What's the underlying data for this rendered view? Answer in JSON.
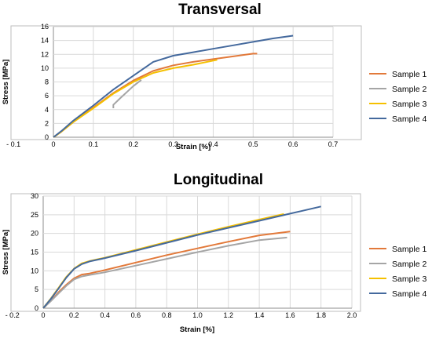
{
  "chart_data": [
    {
      "type": "line",
      "title": "Transversal",
      "xlabel": "Strain [%]",
      "ylabel": "Stress [MPa]",
      "xlim": [
        -0.1,
        0.7
      ],
      "ylim": [
        0,
        16
      ],
      "xticks": [
        "- 0.1",
        "0",
        "0.1",
        "0.2",
        "0.3",
        "0.4",
        "0.5",
        "0.6",
        "0.7"
      ],
      "yticks": [
        "0",
        "2",
        "4",
        "6",
        "8",
        "10",
        "12",
        "14",
        "16"
      ],
      "grid": true,
      "legend": "right",
      "series": [
        {
          "name": "Sample 1",
          "color": "#e2793a",
          "x": [
            0,
            0.02,
            0.05,
            0.1,
            0.15,
            0.2,
            0.25,
            0.3,
            0.35,
            0.4,
            0.45,
            0.5,
            0.51
          ],
          "y": [
            0,
            0.8,
            2.2,
            4.3,
            6.4,
            8.2,
            9.6,
            10.4,
            10.9,
            11.3,
            11.7,
            12.1,
            12.1
          ]
        },
        {
          "name": "Sample 2",
          "color": "#a5a5a5",
          "x": [
            0.15,
            0.15,
            0.17,
            0.2,
            0.22
          ],
          "y": [
            4.2,
            4.7,
            5.8,
            7.4,
            8.3
          ]
        },
        {
          "name": "Sample 3",
          "color": "#f5c000",
          "x": [
            0,
            0.02,
            0.05,
            0.1,
            0.15,
            0.2,
            0.25,
            0.3,
            0.35,
            0.41
          ],
          "y": [
            0,
            0.8,
            2.2,
            4.2,
            6.3,
            8.0,
            9.3,
            10.0,
            10.5,
            11.2
          ]
        },
        {
          "name": "Sample 4",
          "color": "#44699d",
          "x": [
            0,
            0.02,
            0.05,
            0.1,
            0.15,
            0.2,
            0.25,
            0.3,
            0.35,
            0.4,
            0.45,
            0.5,
            0.55,
            0.6
          ],
          "y": [
            0,
            0.9,
            2.4,
            4.6,
            6.9,
            8.9,
            10.9,
            11.8,
            12.3,
            12.8,
            13.3,
            13.8,
            14.3,
            14.7
          ]
        }
      ]
    },
    {
      "type": "line",
      "title": "Longitudinal",
      "xlabel": "Strain [%]",
      "ylabel": "Stress [MPa]",
      "xlim": [
        -0.2,
        2.0
      ],
      "ylim": [
        0,
        30
      ],
      "xticks": [
        "- 0.2",
        "0",
        "0.2",
        "0.4",
        "0.6",
        "0.8",
        "1.0",
        "1.2",
        "1.4",
        "1.6",
        "1.8",
        "2.0"
      ],
      "yticks": [
        "0",
        "5",
        "10",
        "15",
        "20",
        "25",
        "30"
      ],
      "grid": true,
      "legend": "right",
      "series": [
        {
          "name": "Sample 1",
          "color": "#e2793a",
          "x": [
            0,
            0.05,
            0.1,
            0.15,
            0.2,
            0.25,
            0.3,
            0.4,
            0.6,
            0.8,
            1.0,
            1.2,
            1.4,
            1.6
          ],
          "y": [
            0,
            2.0,
            4.3,
            6.3,
            8.0,
            9.0,
            9.3,
            10.2,
            12.2,
            14.2,
            16.0,
            17.8,
            19.5,
            20.5
          ]
        },
        {
          "name": "Sample 2",
          "color": "#a5a5a5",
          "x": [
            0,
            0.05,
            0.1,
            0.15,
            0.2,
            0.25,
            0.3,
            0.4,
            0.6,
            0.8,
            1.0,
            1.2,
            1.4,
            1.58
          ],
          "y": [
            0,
            1.9,
            4.0,
            6.0,
            7.7,
            8.5,
            8.9,
            9.6,
            11.4,
            13.2,
            15.0,
            16.7,
            18.2,
            18.9
          ]
        },
        {
          "name": "Sample 3",
          "color": "#f5c000",
          "x": [
            0,
            0.05,
            0.1,
            0.15,
            0.2,
            0.25,
            0.3,
            0.4,
            0.6,
            0.8,
            1.0,
            1.2,
            1.4,
            1.56
          ],
          "y": [
            0,
            2.6,
            5.5,
            8.4,
            10.6,
            12.0,
            12.6,
            13.5,
            15.6,
            17.7,
            19.8,
            21.8,
            23.7,
            25.2
          ]
        },
        {
          "name": "Sample 4",
          "color": "#44699d",
          "x": [
            0,
            0.05,
            0.1,
            0.15,
            0.2,
            0.25,
            0.3,
            0.4,
            0.6,
            0.8,
            1.0,
            1.2,
            1.4,
            1.6,
            1.8
          ],
          "y": [
            0,
            2.5,
            5.3,
            8.2,
            10.5,
            11.8,
            12.5,
            13.4,
            15.4,
            17.5,
            19.6,
            21.5,
            23.4,
            25.3,
            27.2
          ]
        }
      ]
    }
  ]
}
